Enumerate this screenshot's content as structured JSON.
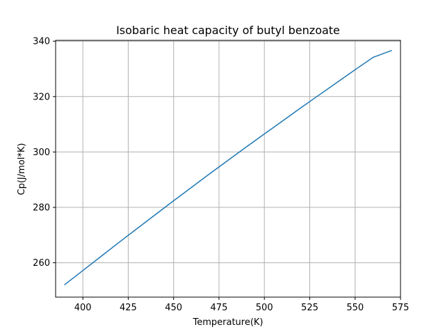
{
  "chart_data": {
    "type": "line",
    "title": "Isobaric heat capacity of butyl benzoate",
    "xlabel": "Temperature(K)",
    "ylabel": "Cp(J/mol*K)",
    "xlim": [
      385,
      575
    ],
    "ylim": [
      247.6,
      340.3
    ],
    "xticks": [
      400,
      425,
      450,
      475,
      500,
      525,
      550,
      575
    ],
    "yticks": [
      260,
      280,
      300,
      320,
      340
    ],
    "grid": true,
    "series": [
      {
        "color": "#1f77b4",
        "x": [
          390,
          400,
          410,
          420,
          430,
          440,
          450,
          460,
          470,
          480,
          490,
          500,
          510,
          520,
          530,
          540,
          550,
          560,
          570
        ],
        "y": [
          252.1,
          257.2,
          262.3,
          267.4,
          272.4,
          277.4,
          282.4,
          287.3,
          292.2,
          297.0,
          301.8,
          306.5,
          311.2,
          315.9,
          320.5,
          325.1,
          329.7,
          334.2,
          336.6
        ]
      }
    ]
  }
}
